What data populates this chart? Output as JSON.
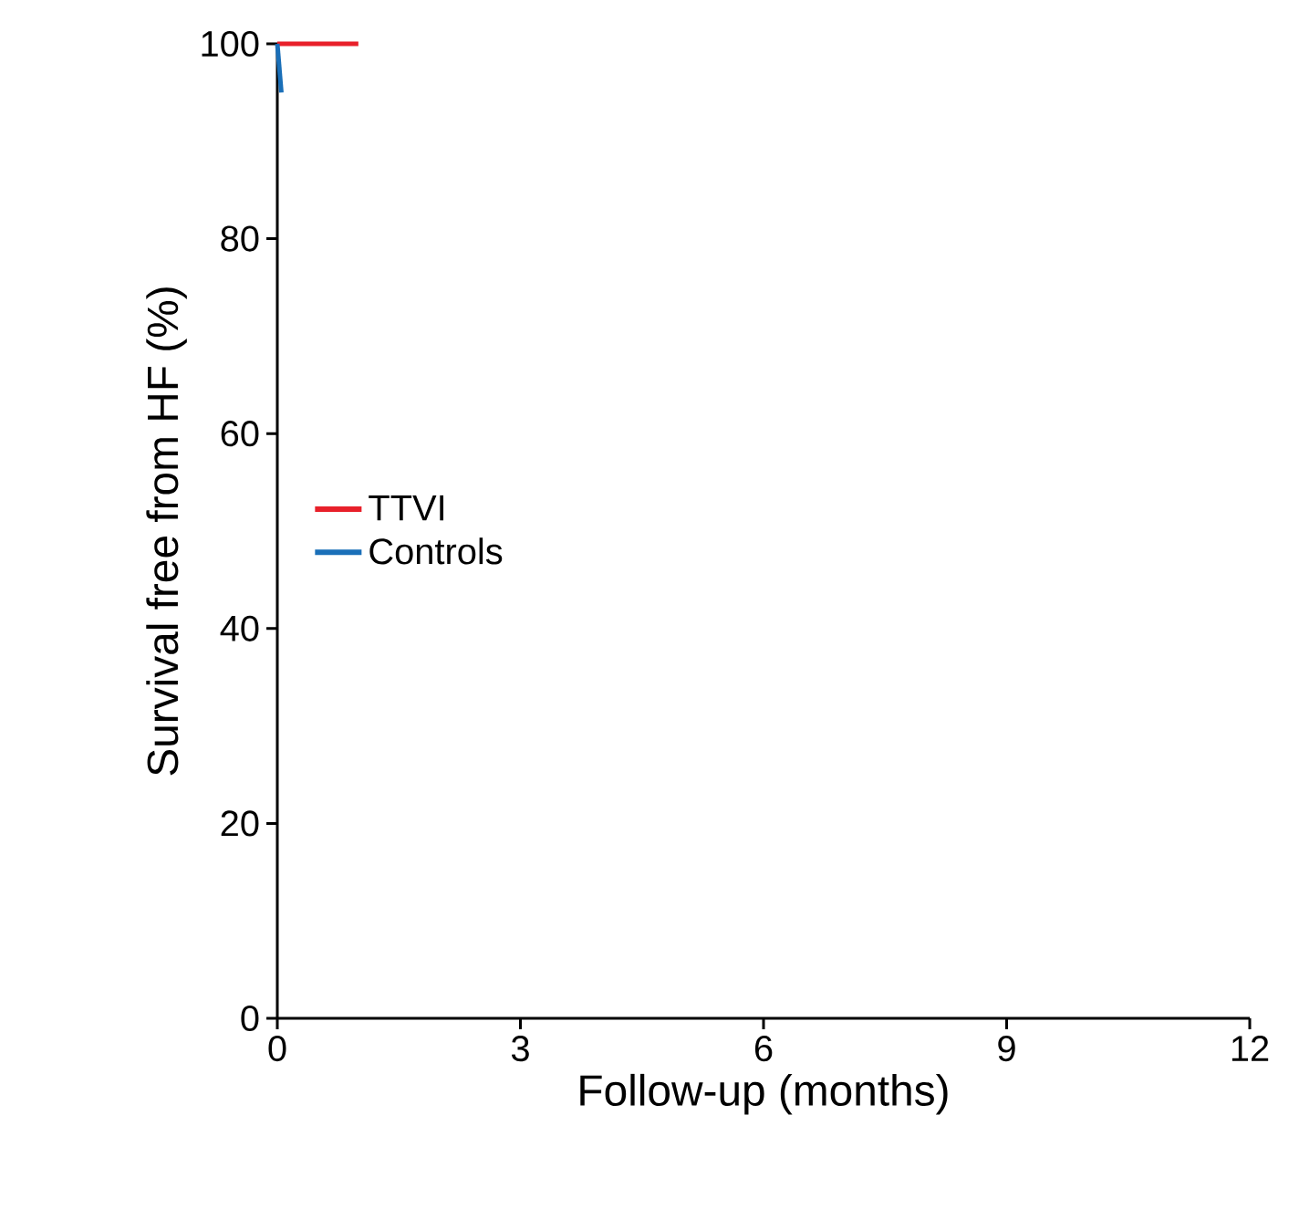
{
  "chart_data": {
    "type": "step",
    "xlabel": "Follow-up (months)",
    "ylabel": "Survival free from HF (%)",
    "xlim": [
      0,
      12
    ],
    "xticks": [
      0,
      3,
      6,
      9,
      12
    ],
    "ylim": [
      0,
      100
    ],
    "yticks": [
      0,
      20,
      40,
      60,
      80,
      100
    ],
    "legend": "left",
    "grid": false,
    "series": [
      {
        "name": "TTVI",
        "color": "#e8202a",
        "x": [
          0,
          1
        ],
        "values": [
          100,
          100
        ]
      },
      {
        "name": "Controls",
        "color": "#1a6fb8",
        "type": "line",
        "x": [
          0,
          0.05
        ],
        "values": [
          100,
          95
        ]
      }
    ]
  }
}
